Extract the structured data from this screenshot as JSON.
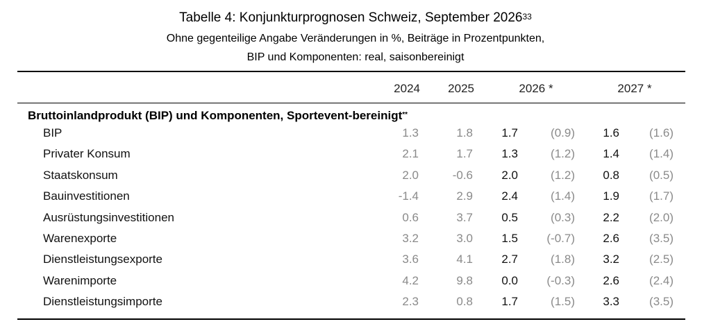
{
  "table": {
    "title": "Tabelle 4: Konjunkturprognosen Schweiz, September 2026",
    "title_footnote": "33",
    "subtitle_line1": "Ohne gegenteilige Angabe Veränderungen in %, Beiträge in Prozentpunkten,",
    "subtitle_line2": "BIP und Komponenten: real, saisonbereinigt",
    "columns": {
      "c2024": "2024",
      "c2025": "2025",
      "c2026": "2026 *",
      "c2027": "2027 *"
    },
    "section_title": "Bruttoinlandprodukt (BIP) und Komponenten, Sportevent-bereinigt",
    "section_footnote": "**",
    "rows": [
      {
        "label": "BIP",
        "y2024": "1.3",
        "y2025": "1.8",
        "y2026": "1.7",
        "y2026_prev": "(0.9)",
        "y2027": "1.6",
        "y2027_prev": "(1.6)"
      },
      {
        "label": "Privater Konsum",
        "y2024": "2.1",
        "y2025": "1.7",
        "y2026": "1.3",
        "y2026_prev": "(1.2)",
        "y2027": "1.4",
        "y2027_prev": "(1.4)"
      },
      {
        "label": "Staatskonsum",
        "y2024": "2.0",
        "y2025": "-0.6",
        "y2026": "2.0",
        "y2026_prev": "(1.2)",
        "y2027": "0.8",
        "y2027_prev": "(0.5)"
      },
      {
        "label": "Bauinvestitionen",
        "y2024": "-1.4",
        "y2025": "2.9",
        "y2026": "2.4",
        "y2026_prev": "(1.4)",
        "y2027": "1.9",
        "y2027_prev": "(1.7)"
      },
      {
        "label": "Ausrüstungsinvestitionen",
        "y2024": "0.6",
        "y2025": "3.7",
        "y2026": "0.5",
        "y2026_prev": "(0.3)",
        "y2027": "2.2",
        "y2027_prev": "(2.0)"
      },
      {
        "label": "Warenexporte",
        "y2024": "3.2",
        "y2025": "3.0",
        "y2026": "1.5",
        "y2026_prev": "(-0.7)",
        "y2027": "2.6",
        "y2027_prev": "(3.5)"
      },
      {
        "label": "Dienstleistungsexporte",
        "y2024": "3.6",
        "y2025": "4.1",
        "y2026": "2.7",
        "y2026_prev": "(1.8)",
        "y2027": "3.2",
        "y2027_prev": "(2.5)"
      },
      {
        "label": "Warenimporte",
        "y2024": "4.2",
        "y2025": "9.8",
        "y2026": "0.0",
        "y2026_prev": "(-0.3)",
        "y2027": "2.6",
        "y2027_prev": "(2.4)"
      },
      {
        "label": "Dienstleistungsimporte",
        "y2024": "2.3",
        "y2025": "0.8",
        "y2026": "1.7",
        "y2026_prev": "(1.5)",
        "y2027": "3.3",
        "y2027_prev": "(3.5)"
      }
    ]
  }
}
